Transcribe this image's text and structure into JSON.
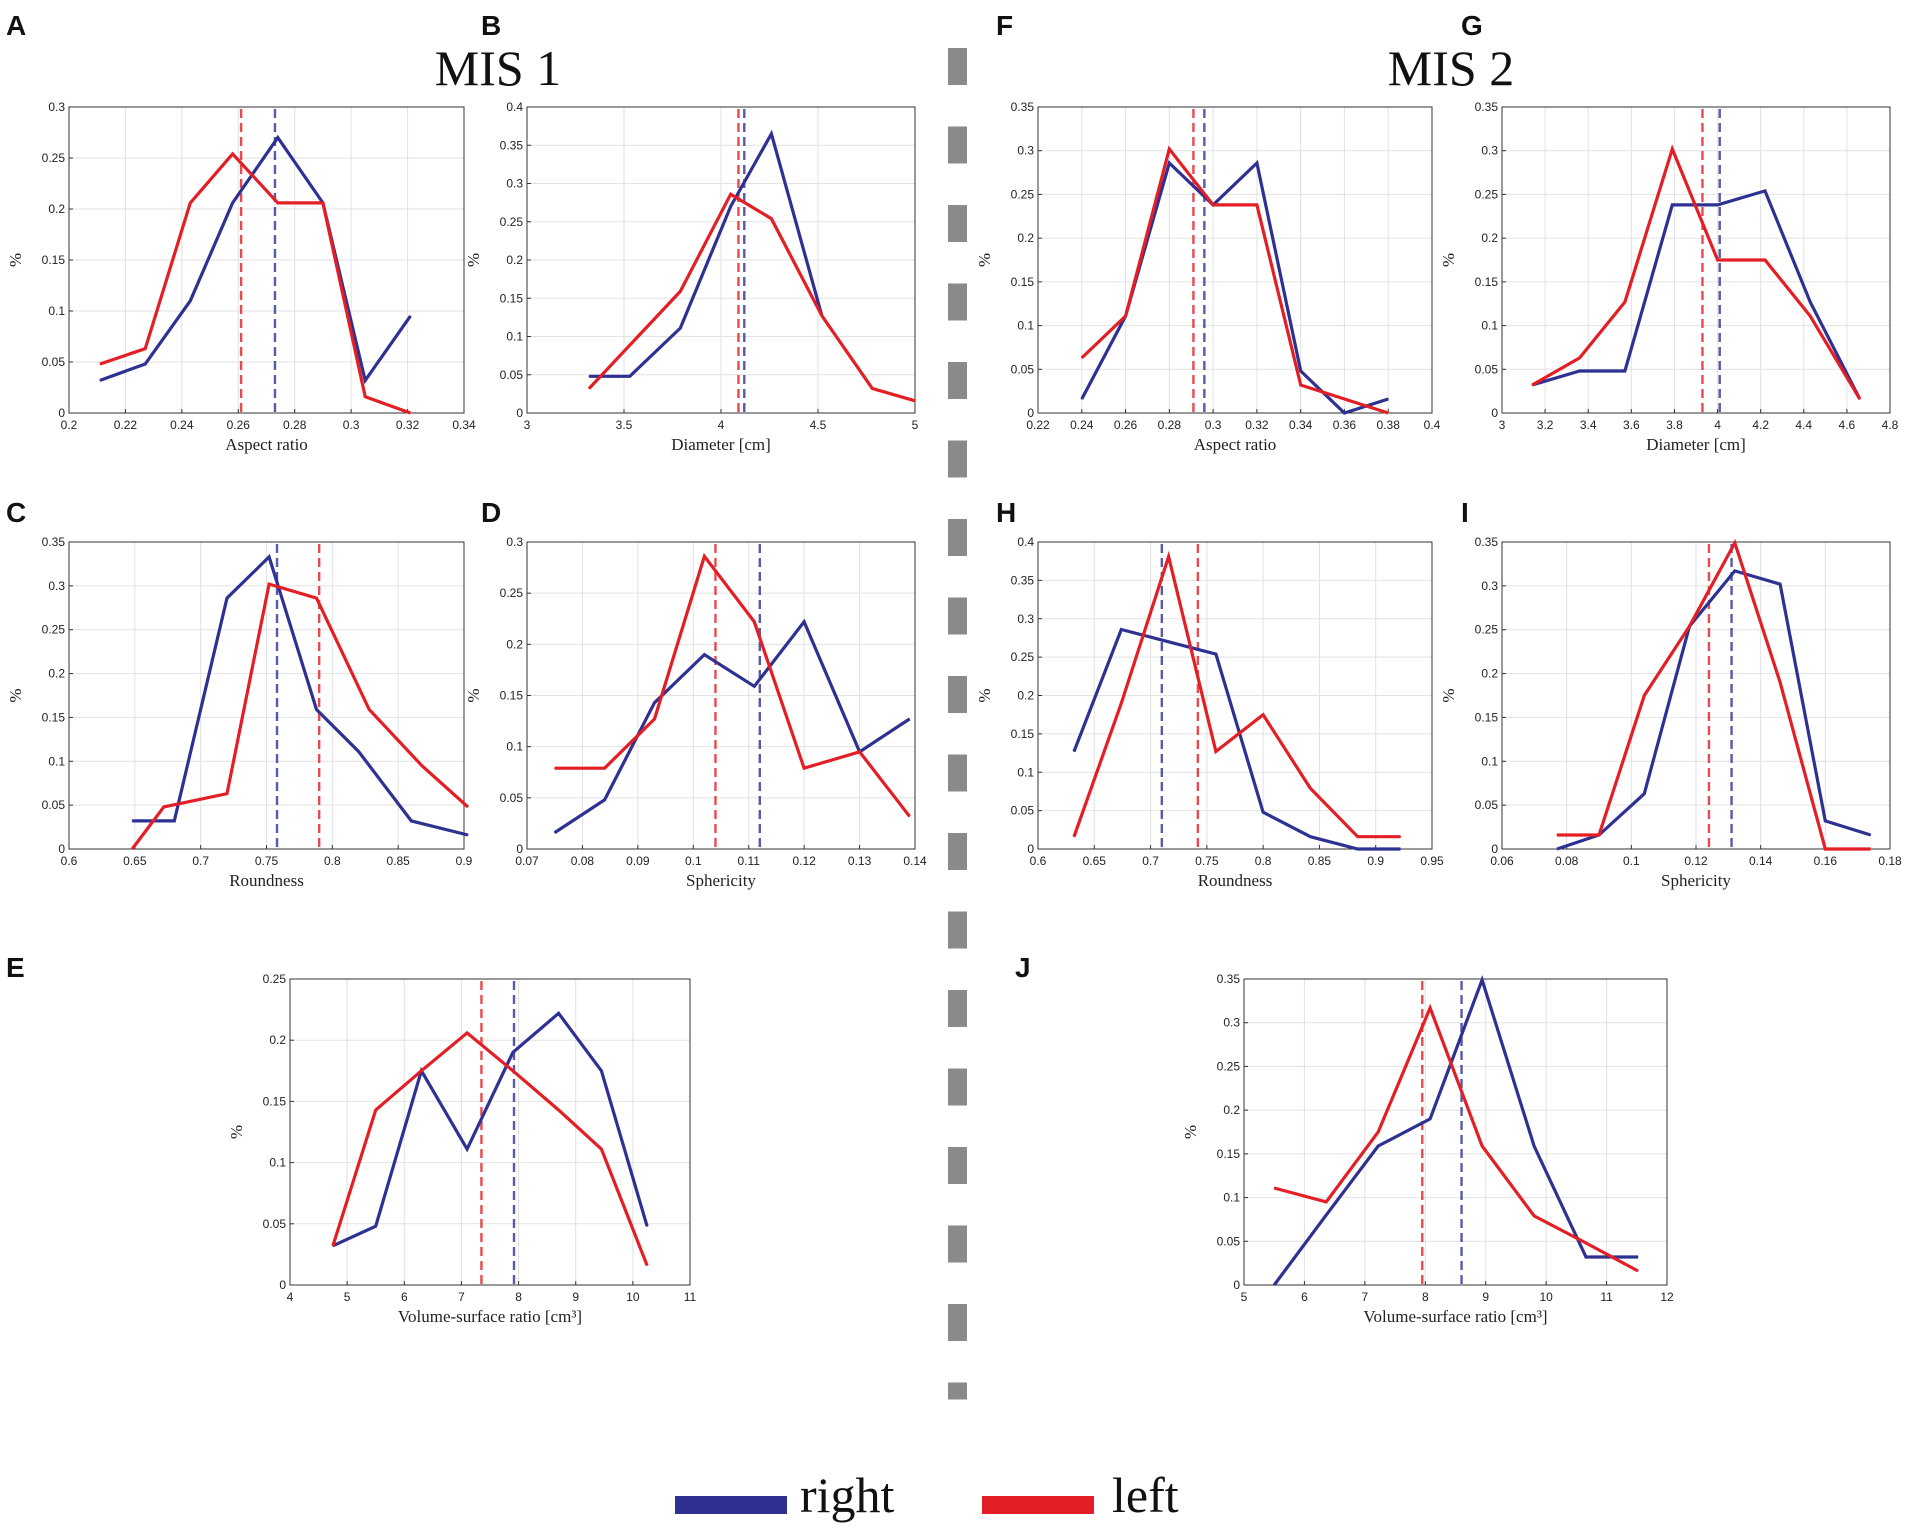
{
  "titles": [
    "MIS 1",
    "MIS 2"
  ],
  "legend": [
    {
      "label": "right",
      "color": "#2e3192"
    },
    {
      "label": "left",
      "color": "#e31e24"
    }
  ],
  "colors": {
    "right": "#2e3192",
    "left": "#e31e24",
    "divider": "#8a8a8a"
  },
  "chart_data": [
    {
      "id": "A",
      "type": "line",
      "title": "",
      "xlabel": "Aspect ratio",
      "ylabel": "%",
      "xlim": [
        0.2,
        0.34
      ],
      "xticks": [
        0.2,
        0.22,
        0.24,
        0.26,
        0.28,
        0.3,
        0.32,
        0.34
      ],
      "xtick_labels": [
        "0.2",
        "0.22",
        "0.24",
        "0.26",
        "0.28",
        "0.3",
        "0.32",
        "0.34"
      ],
      "ylim": [
        0,
        0.3
      ],
      "yticks": [
        0,
        0.05,
        0.1,
        0.15,
        0.2,
        0.25,
        0.3
      ],
      "ytick_labels": [
        "0",
        "0.05",
        "0.1",
        "0.15",
        "0.2",
        "0.25",
        "0.3"
      ],
      "series": [
        {
          "name": "right",
          "x": [
            0.211,
            0.227,
            0.243,
            0.258,
            0.274,
            0.29,
            0.305,
            0.321
          ],
          "y": [
            0.032,
            0.048,
            0.11,
            0.206,
            0.27,
            0.206,
            0.032,
            0.095
          ],
          "mean": 0.273
        },
        {
          "name": "left",
          "x": [
            0.211,
            0.227,
            0.243,
            0.258,
            0.274,
            0.29,
            0.305,
            0.321
          ],
          "y": [
            0.048,
            0.063,
            0.206,
            0.254,
            0.206,
            0.206,
            0.016,
            0.0
          ],
          "mean": 0.261
        }
      ]
    },
    {
      "id": "B",
      "type": "line",
      "title": "",
      "xlabel": "Diameter [cm]",
      "ylabel": "%",
      "xlim": [
        3,
        5
      ],
      "xticks": [
        3,
        3.5,
        4,
        4.5,
        5
      ],
      "xtick_labels": [
        "3",
        "3.5",
        "4",
        "4.5",
        "5"
      ],
      "ylim": [
        0,
        0.4
      ],
      "yticks": [
        0,
        0.05,
        0.1,
        0.15,
        0.2,
        0.25,
        0.3,
        0.35,
        0.4
      ],
      "ytick_labels": [
        "0",
        "0.05",
        "0.1",
        "0.15",
        "0.2",
        "0.25",
        "0.3",
        "0.35",
        "0.4"
      ],
      "series": [
        {
          "name": "right",
          "x": [
            3.32,
            3.53,
            3.79,
            4.05,
            4.26,
            4.52
          ],
          "y": [
            0.048,
            0.048,
            0.111,
            0.27,
            0.365,
            0.127
          ],
          "mean": 4.12
        },
        {
          "name": "left",
          "x": [
            3.32,
            3.79,
            4.05,
            4.26,
            4.52,
            4.78,
            5.0
          ],
          "y": [
            0.032,
            0.159,
            0.286,
            0.254,
            0.127,
            0.032,
            0.016
          ],
          "mean": 4.09
        }
      ]
    },
    {
      "id": "C",
      "type": "line",
      "title": "",
      "xlabel": "Roundness",
      "ylabel": "%",
      "xlim": [
        0.6,
        0.9
      ],
      "xticks": [
        0.6,
        0.65,
        0.7,
        0.75,
        0.8,
        0.85,
        0.9
      ],
      "xtick_labels": [
        "0.6",
        "0.65",
        "0.7",
        "0.75",
        "0.8",
        "0.85",
        "0.9"
      ],
      "ylim": [
        0,
        0.35
      ],
      "yticks": [
        0,
        0.05,
        0.1,
        0.15,
        0.2,
        0.25,
        0.3,
        0.35
      ],
      "ytick_labels": [
        "0",
        "0.05",
        "0.1",
        "0.15",
        "0.2",
        "0.25",
        "0.3",
        "0.35"
      ],
      "series": [
        {
          "name": "right",
          "x": [
            0.648,
            0.68,
            0.72,
            0.752,
            0.788,
            0.82,
            0.86,
            0.903
          ],
          "y": [
            0.032,
            0.032,
            0.286,
            0.333,
            0.159,
            0.111,
            0.032,
            0.016
          ],
          "mean": 0.758
        },
        {
          "name": "left",
          "x": [
            0.648,
            0.672,
            0.72,
            0.752,
            0.788,
            0.828,
            0.868,
            0.903
          ],
          "y": [
            0.0,
            0.048,
            0.063,
            0.302,
            0.286,
            0.159,
            0.095,
            0.048
          ],
          "mean": 0.79
        }
      ]
    },
    {
      "id": "D",
      "type": "line",
      "title": "",
      "xlabel": "Sphericity",
      "ylabel": "%",
      "xlim": [
        0.07,
        0.14
      ],
      "xticks": [
        0.07,
        0.08,
        0.09,
        0.1,
        0.11,
        0.12,
        0.13,
        0.14
      ],
      "xtick_labels": [
        "0.07",
        "0.08",
        "0.09",
        "0.1",
        "0.11",
        "0.12",
        "0.13",
        "0.14"
      ],
      "ylim": [
        0,
        0.3
      ],
      "yticks": [
        0,
        0.05,
        0.1,
        0.15,
        0.2,
        0.25,
        0.3
      ],
      "ytick_labels": [
        "0",
        "0.05",
        "0.1",
        "0.15",
        "0.2",
        "0.25",
        "0.3"
      ],
      "series": [
        {
          "name": "right",
          "x": [
            0.075,
            0.084,
            0.093,
            0.102,
            0.111,
            0.12,
            0.13,
            0.139
          ],
          "y": [
            0.016,
            0.048,
            0.143,
            0.19,
            0.159,
            0.222,
            0.095,
            0.127
          ],
          "mean": 0.112
        },
        {
          "name": "left",
          "x": [
            0.075,
            0.084,
            0.093,
            0.102,
            0.111,
            0.12,
            0.13,
            0.139
          ],
          "y": [
            0.079,
            0.079,
            0.127,
            0.286,
            0.222,
            0.079,
            0.095,
            0.032
          ],
          "mean": 0.104
        }
      ]
    },
    {
      "id": "E",
      "type": "line",
      "title": "",
      "xlabel": "Volume-surface ratio [cm³]",
      "ylabel": "%",
      "xlim": [
        4,
        11
      ],
      "xticks": [
        4,
        5,
        6,
        7,
        8,
        9,
        10,
        11
      ],
      "xtick_labels": [
        "4",
        "5",
        "6",
        "7",
        "8",
        "9",
        "10",
        "11"
      ],
      "ylim": [
        0,
        0.25
      ],
      "yticks": [
        0,
        0.05,
        0.1,
        0.15,
        0.2,
        0.25
      ],
      "ytick_labels": [
        "0",
        "0.05",
        "0.1",
        "0.15",
        "0.2",
        "0.25"
      ],
      "series": [
        {
          "name": "right",
          "x": [
            4.75,
            5.5,
            6.3,
            7.1,
            7.9,
            8.7,
            9.45,
            10.25
          ],
          "y": [
            0.032,
            0.048,
            0.175,
            0.111,
            0.19,
            0.222,
            0.175,
            0.048
          ],
          "mean": 7.92
        },
        {
          "name": "left",
          "x": [
            4.75,
            5.5,
            6.3,
            7.1,
            7.9,
            8.7,
            9.45,
            10.25
          ],
          "y": [
            0.032,
            0.143,
            0.175,
            0.206,
            0.175,
            0.143,
            0.111,
            0.016
          ],
          "mean": 7.35
        }
      ]
    },
    {
      "id": "F",
      "type": "line",
      "title": "",
      "xlabel": "Aspect ratio",
      "ylabel": "%",
      "xlim": [
        0.22,
        0.4
      ],
      "xticks": [
        0.22,
        0.24,
        0.26,
        0.28,
        0.3,
        0.32,
        0.34,
        0.36,
        0.38,
        0.4
      ],
      "xtick_labels": [
        "0.22",
        "0.24",
        "0.26",
        "0.28",
        "0.3",
        "0.32",
        "0.34",
        "0.36",
        "0.38",
        "0.4"
      ],
      "ylim": [
        0,
        0.35
      ],
      "yticks": [
        0,
        0.05,
        0.1,
        0.15,
        0.2,
        0.25,
        0.3,
        0.35
      ],
      "ytick_labels": [
        "0",
        "0.05",
        "0.1",
        "0.15",
        "0.2",
        "0.25",
        "0.3",
        "0.35"
      ],
      "series": [
        {
          "name": "right",
          "x": [
            0.24,
            0.26,
            0.28,
            0.3,
            0.32,
            0.34,
            0.36,
            0.38
          ],
          "y": [
            0.016,
            0.111,
            0.286,
            0.238,
            0.286,
            0.048,
            0.0,
            0.016
          ],
          "mean": 0.296
        },
        {
          "name": "left",
          "x": [
            0.24,
            0.26,
            0.28,
            0.3,
            0.32,
            0.34,
            0.36,
            0.38
          ],
          "y": [
            0.063,
            0.111,
            0.302,
            0.238,
            0.238,
            0.032,
            0.016,
            0.0
          ],
          "mean": 0.291
        }
      ]
    },
    {
      "id": "G",
      "type": "line",
      "title": "",
      "xlabel": "Diameter [cm]",
      "ylabel": "%",
      "xlim": [
        3,
        4.8
      ],
      "xticks": [
        3,
        3.2,
        3.4,
        3.6,
        3.8,
        4,
        4.2,
        4.4,
        4.6,
        4.8
      ],
      "xtick_labels": [
        "3",
        "3.2",
        "3.4",
        "3.6",
        "3.8",
        "4",
        "4.2",
        "4.4",
        "4.6",
        "4.8"
      ],
      "ylim": [
        0,
        0.35
      ],
      "yticks": [
        0,
        0.05,
        0.1,
        0.15,
        0.2,
        0.25,
        0.3,
        0.35
      ],
      "ytick_labels": [
        "0",
        "0.05",
        "0.1",
        "0.15",
        "0.2",
        "0.25",
        "0.3",
        "0.35"
      ],
      "series": [
        {
          "name": "right",
          "x": [
            3.14,
            3.36,
            3.57,
            3.79,
            4.0,
            4.22,
            4.43,
            4.66
          ],
          "y": [
            0.032,
            0.048,
            0.048,
            0.238,
            0.238,
            0.254,
            0.127,
            0.016
          ],
          "mean": 4.01
        },
        {
          "name": "left",
          "x": [
            3.14,
            3.36,
            3.57,
            3.79,
            4.0,
            4.22,
            4.43,
            4.66
          ],
          "y": [
            0.032,
            0.063,
            0.127,
            0.302,
            0.175,
            0.175,
            0.111,
            0.016
          ],
          "mean": 3.93
        }
      ]
    },
    {
      "id": "H",
      "type": "line",
      "title": "",
      "xlabel": "Roundness",
      "ylabel": "%",
      "xlim": [
        0.6,
        0.95
      ],
      "xticks": [
        0.6,
        0.65,
        0.7,
        0.75,
        0.8,
        0.85,
        0.9,
        0.95
      ],
      "xtick_labels": [
        "0.6",
        "0.65",
        "0.7",
        "0.75",
        "0.8",
        "0.85",
        "0.9",
        "0.95"
      ],
      "ylim": [
        0,
        0.4
      ],
      "yticks": [
        0,
        0.05,
        0.1,
        0.15,
        0.2,
        0.25,
        0.3,
        0.35,
        0.4
      ],
      "ytick_labels": [
        "0",
        "0.05",
        "0.1",
        "0.15",
        "0.2",
        "0.25",
        "0.3",
        "0.35",
        "0.4"
      ],
      "series": [
        {
          "name": "right",
          "x": [
            0.632,
            0.674,
            0.716,
            0.758,
            0.8,
            0.842,
            0.884,
            0.922
          ],
          "y": [
            0.127,
            0.286,
            0.27,
            0.254,
            0.048,
            0.016,
            0.0,
            0.0
          ],
          "mean": 0.71
        },
        {
          "name": "left",
          "x": [
            0.632,
            0.674,
            0.716,
            0.758,
            0.8,
            0.842,
            0.884,
            0.922
          ],
          "y": [
            0.016,
            0.19,
            0.381,
            0.127,
            0.175,
            0.079,
            0.016,
            0.016
          ],
          "mean": 0.742
        }
      ]
    },
    {
      "id": "I",
      "type": "line",
      "title": "",
      "xlabel": "Sphericity",
      "ylabel": "%",
      "xlim": [
        0.06,
        0.18
      ],
      "xticks": [
        0.06,
        0.08,
        0.1,
        0.12,
        0.14,
        0.16,
        0.18
      ],
      "xtick_labels": [
        "0.06",
        "0.08",
        "0.1",
        "0.12",
        "0.14",
        "0.16",
        "0.18"
      ],
      "ylim": [
        0,
        0.35
      ],
      "yticks": [
        0,
        0.05,
        0.1,
        0.15,
        0.2,
        0.25,
        0.3,
        0.35
      ],
      "ytick_labels": [
        "0",
        "0.05",
        "0.1",
        "0.15",
        "0.2",
        "0.25",
        "0.3",
        "0.35"
      ],
      "series": [
        {
          "name": "right",
          "x": [
            0.077,
            0.09,
            0.104,
            0.118,
            0.132,
            0.146,
            0.16,
            0.174
          ],
          "y": [
            0.0,
            0.016,
            0.063,
            0.254,
            0.317,
            0.302,
            0.032,
            0.016
          ],
          "mean": 0.131
        },
        {
          "name": "left",
          "x": [
            0.077,
            0.09,
            0.104,
            0.118,
            0.132,
            0.146,
            0.16,
            0.174
          ],
          "y": [
            0.016,
            0.016,
            0.175,
            0.254,
            0.349,
            0.19,
            0.0,
            0.0
          ],
          "mean": 0.124
        }
      ]
    },
    {
      "id": "J",
      "type": "line",
      "title": "",
      "xlabel": "Volume-surface ratio [cm³]",
      "ylabel": "%",
      "xlim": [
        5,
        12
      ],
      "xticks": [
        5,
        6,
        7,
        8,
        9,
        10,
        11,
        12
      ],
      "xtick_labels": [
        "5",
        "6",
        "7",
        "8",
        "9",
        "10",
        "11",
        "12"
      ],
      "ylim": [
        0,
        0.35
      ],
      "yticks": [
        0,
        0.05,
        0.1,
        0.15,
        0.2,
        0.25,
        0.3,
        0.35
      ],
      "ytick_labels": [
        "0",
        "0.05",
        "0.1",
        "0.15",
        "0.2",
        "0.25",
        "0.3",
        "0.35"
      ],
      "series": [
        {
          "name": "right",
          "x": [
            5.5,
            6.36,
            7.22,
            8.08,
            8.94,
            9.8,
            10.66,
            11.52
          ],
          "y": [
            0.0,
            0.08,
            0.159,
            0.19,
            0.349,
            0.159,
            0.032,
            0.032
          ],
          "mean": 8.6
        },
        {
          "name": "left",
          "x": [
            5.5,
            6.36,
            7.22,
            8.08,
            8.94,
            9.8,
            10.66,
            11.52
          ],
          "y": [
            0.111,
            0.095,
            0.175,
            0.317,
            0.159,
            0.079,
            0.048,
            0.016
          ],
          "mean": 7.95
        }
      ]
    }
  ]
}
